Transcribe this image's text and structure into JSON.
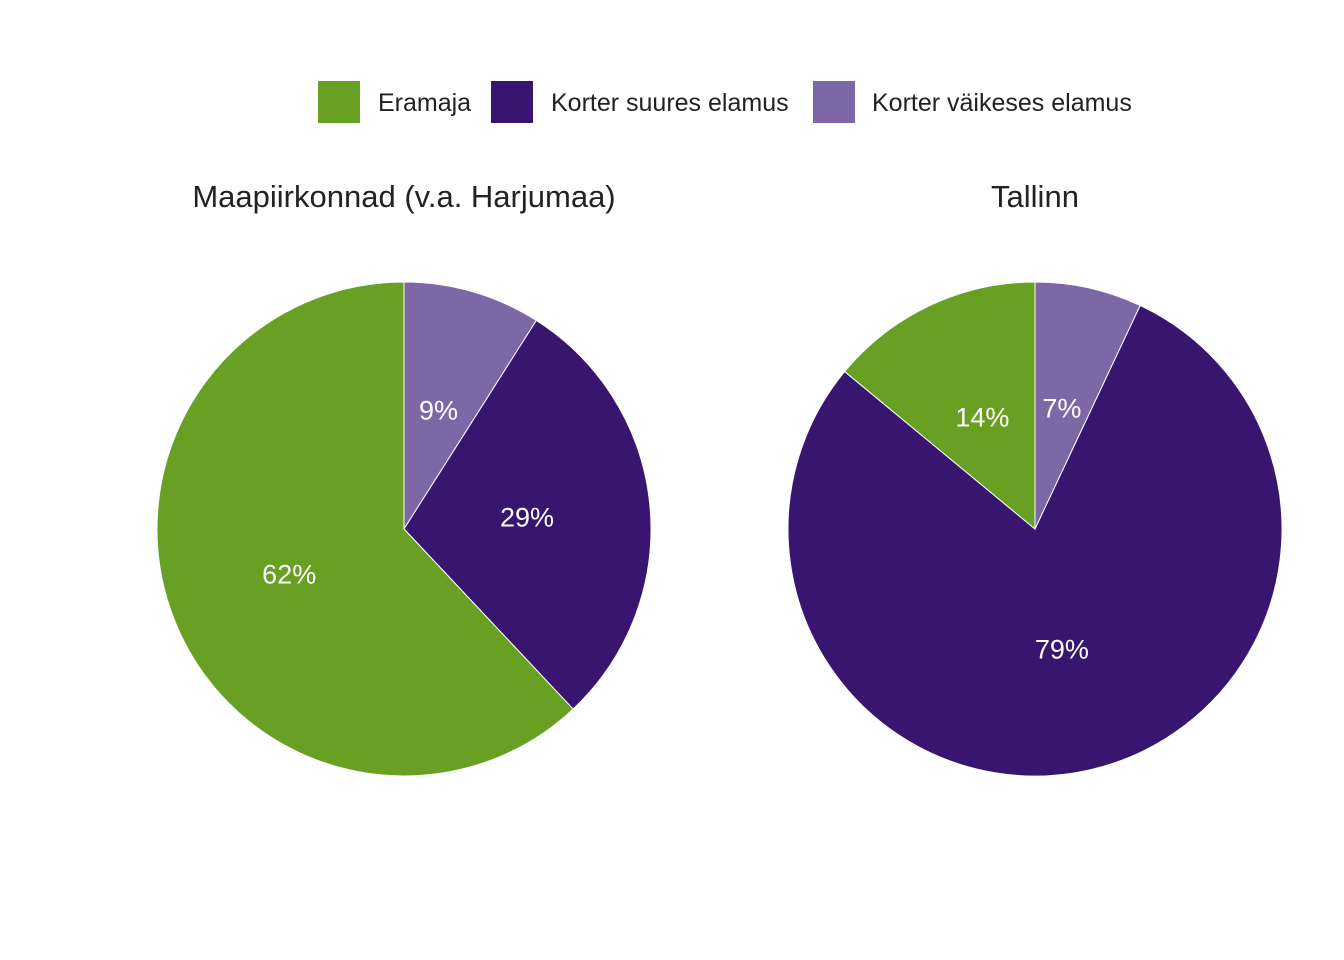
{
  "chart_data": {
    "type": "pie",
    "legend": {
      "position": "top",
      "entries": [
        {
          "name": "Eramaja",
          "color": "#68a023"
        },
        {
          "name": "Korter suures elamus",
          "color": "#38166f"
        },
        {
          "name": "Korter väikeses elamus",
          "color": "#7d67a7"
        }
      ]
    },
    "charts": [
      {
        "title": "Maapiirkonnad (v.a. Harjumaa)",
        "slices": [
          {
            "category": "Korter väikeses elamus",
            "value": 9,
            "label": "9%"
          },
          {
            "category": "Korter suures elamus",
            "value": 29,
            "label": "29%"
          },
          {
            "category": "Eramaja",
            "value": 62,
            "label": "62%"
          }
        ]
      },
      {
        "title": "Tallinn",
        "slices": [
          {
            "category": "Korter väikeses elamus",
            "value": 7,
            "label": "7%"
          },
          {
            "category": "Korter suures elamus",
            "value": 79,
            "label": "79%"
          },
          {
            "category": "Eramaja",
            "value": 14,
            "label": "14%"
          }
        ]
      }
    ]
  }
}
